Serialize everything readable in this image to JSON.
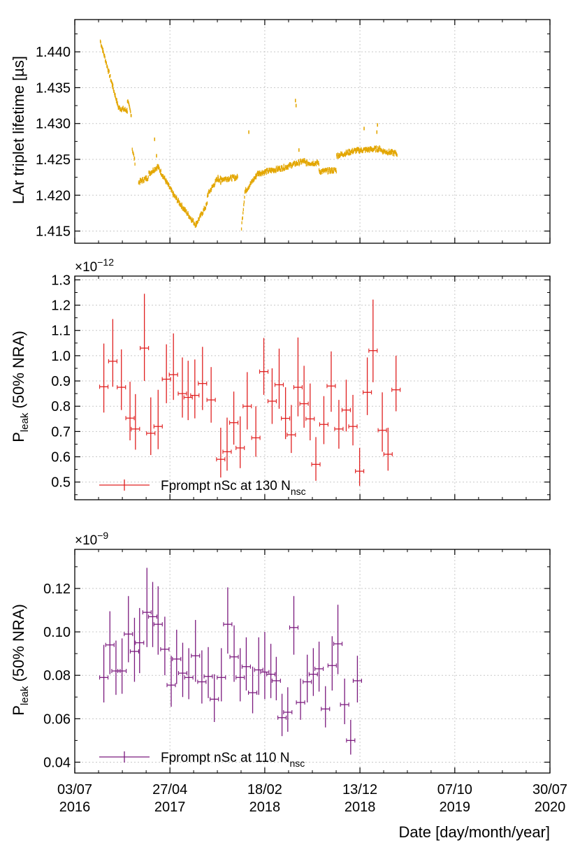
{
  "chart_data": [
    {
      "type": "scatter",
      "id": "lifetime",
      "ylabel": "LAr triplet lifetime [µs]",
      "ylim": [
        1.4133,
        1.4445
      ],
      "yticks": [
        1.415,
        1.42,
        1.425,
        1.43,
        1.435,
        1.44
      ],
      "ytick_labels": [
        "1.415",
        "1.420",
        "1.425",
        "1.430",
        "1.435",
        "1.440"
      ],
      "color": "#e3a600",
      "segments": [
        {
          "x0": 80,
          "x1": 137,
          "y0": 1.4415,
          "y1": 1.4322
        },
        {
          "x0": 137,
          "x1": 165,
          "y0": 1.4322,
          "y1": 1.4318
        },
        {
          "x0": 165,
          "x1": 177,
          "y0": 1.4332,
          "y1": 1.4312
        },
        {
          "x0": 180,
          "x1": 189,
          "y0": 1.4265,
          "y1": 1.4245
        },
        {
          "x0": 200,
          "x1": 230,
          "y0": 1.4218,
          "y1": 1.4225
        },
        {
          "x0": 232,
          "x1": 260,
          "y0": 1.423,
          "y1": 1.424
        },
        {
          "x0": 260,
          "x1": 310,
          "y0": 1.424,
          "y1": 1.42
        },
        {
          "x0": 310,
          "x1": 380,
          "y0": 1.42,
          "y1": 1.4158
        },
        {
          "x0": 380,
          "x1": 415,
          "y0": 1.416,
          "y1": 1.4188
        },
        {
          "x0": 415,
          "x1": 450,
          "y0": 1.42,
          "y1": 1.4225
        },
        {
          "x0": 450,
          "x1": 510,
          "y0": 1.4222,
          "y1": 1.4225
        },
        {
          "x0": 522,
          "x1": 533,
          "y0": 1.4155,
          "y1": 1.4205
        },
        {
          "x0": 533,
          "x1": 570,
          "y0": 1.4205,
          "y1": 1.4228
        },
        {
          "x0": 570,
          "x1": 650,
          "y0": 1.423,
          "y1": 1.4238
        },
        {
          "x0": 650,
          "x1": 720,
          "y0": 1.4238,
          "y1": 1.4248
        },
        {
          "x0": 720,
          "x1": 765,
          "y0": 1.4245,
          "y1": 1.4245
        },
        {
          "x0": 765,
          "x1": 820,
          "y0": 1.4233,
          "y1": 1.4235
        },
        {
          "x0": 820,
          "x1": 875,
          "y0": 1.4255,
          "y1": 1.4262
        },
        {
          "x0": 875,
          "x1": 960,
          "y0": 1.4262,
          "y1": 1.4265
        },
        {
          "x0": 960,
          "x1": 1010,
          "y0": 1.4262,
          "y1": 1.4258
        }
      ],
      "outliers": [
        {
          "x": 118,
          "y": 1.4355
        },
        {
          "x": 250,
          "y": 1.4278
        },
        {
          "x": 256,
          "y": 1.4255
        },
        {
          "x": 457,
          "y": 1.4217
        },
        {
          "x": 545,
          "y": 1.4288
        },
        {
          "x": 691,
          "y": 1.4332
        },
        {
          "x": 693,
          "y": 1.4325
        },
        {
          "x": 702,
          "y": 1.4263
        },
        {
          "x": 906,
          "y": 1.4293
        },
        {
          "x": 948,
          "y": 1.4298
        },
        {
          "x": 946,
          "y": 1.4288
        }
      ]
    },
    {
      "type": "scatter",
      "id": "pleak130",
      "ylabel": "P",
      "ylabel_sub": "leak",
      "ylabel_rest": "  (50% NRA)",
      "ylim": [
        0.43,
        1.315
      ],
      "yticks": [
        0.5,
        0.6,
        0.7,
        0.8,
        0.9,
        1.0,
        1.1,
        1.2,
        1.3
      ],
      "ytick_labels": [
        "0.5",
        "0.6",
        "0.7",
        "0.8",
        "0.9",
        "1.0",
        "1.1",
        "1.2",
        "1.3"
      ],
      "exponent_prefix": "×10",
      "exponent_power": "−12",
      "color": "#e02020",
      "legend_label": "Fprompt nSc at 130 N",
      "legend_sub": "nsc",
      "points": [
        {
          "x": 91,
          "y": 0.877,
          "lo": 0.775,
          "hi": 1.048
        },
        {
          "x": 119,
          "y": 0.978,
          "lo": 0.877,
          "hi": 1.145
        },
        {
          "x": 146,
          "y": 0.875,
          "lo": 0.785,
          "hi": 1.025
        },
        {
          "x": 173,
          "y": 0.753,
          "lo": 0.665,
          "hi": 0.897
        },
        {
          "x": 190,
          "y": 0.71,
          "lo": 0.628,
          "hi": 0.848
        },
        {
          "x": 218,
          "y": 1.03,
          "lo": 0.9,
          "hi": 1.245
        },
        {
          "x": 238,
          "y": 0.693,
          "lo": 0.607,
          "hi": 0.835
        },
        {
          "x": 261,
          "y": 0.72,
          "lo": 0.63,
          "hi": 0.865
        },
        {
          "x": 287,
          "y": 0.907,
          "lo": 0.812,
          "hi": 1.045
        },
        {
          "x": 309,
          "y": 0.925,
          "lo": 0.825,
          "hi": 1.088
        },
        {
          "x": 337,
          "y": 0.85,
          "lo": 0.755,
          "hi": 0.993
        },
        {
          "x": 355,
          "y": 0.835,
          "lo": 0.745,
          "hi": 0.98
        },
        {
          "x": 376,
          "y": 0.843,
          "lo": 0.752,
          "hi": 0.985
        },
        {
          "x": 400,
          "y": 0.89,
          "lo": 0.785,
          "hi": 1.035
        },
        {
          "x": 427,
          "y": 0.825,
          "lo": 0.735,
          "hi": 0.955
        },
        {
          "x": 457,
          "y": 0.59,
          "lo": 0.518,
          "hi": 0.715
        },
        {
          "x": 477,
          "y": 0.62,
          "lo": 0.545,
          "hi": 0.755
        },
        {
          "x": 498,
          "y": 0.735,
          "lo": 0.648,
          "hi": 0.858
        },
        {
          "x": 518,
          "y": 0.635,
          "lo": 0.555,
          "hi": 0.76
        },
        {
          "x": 540,
          "y": 0.8,
          "lo": 0.708,
          "hi": 0.935
        },
        {
          "x": 567,
          "y": 0.675,
          "lo": 0.6,
          "hi": 0.8
        },
        {
          "x": 592,
          "y": 0.937,
          "lo": 0.845,
          "hi": 1.07
        },
        {
          "x": 618,
          "y": 0.82,
          "lo": 0.73,
          "hi": 0.95
        },
        {
          "x": 640,
          "y": 0.885,
          "lo": 0.79,
          "hi": 1.028
        },
        {
          "x": 660,
          "y": 0.752,
          "lo": 0.67,
          "hi": 0.875
        },
        {
          "x": 678,
          "y": 0.687,
          "lo": 0.615,
          "hi": 0.805
        },
        {
          "x": 699,
          "y": 0.875,
          "lo": 0.76,
          "hi": 1.072
        },
        {
          "x": 718,
          "y": 0.81,
          "lo": 0.715,
          "hi": 0.96
        },
        {
          "x": 737,
          "y": 0.75,
          "lo": 0.665,
          "hi": 0.89
        },
        {
          "x": 755,
          "y": 0.57,
          "lo": 0.505,
          "hi": 0.678
        },
        {
          "x": 780,
          "y": 0.728,
          "lo": 0.65,
          "hi": 0.84
        },
        {
          "x": 803,
          "y": 0.88,
          "lo": 0.778,
          "hi": 1.017
        },
        {
          "x": 827,
          "y": 0.71,
          "lo": 0.632,
          "hi": 0.825
        },
        {
          "x": 850,
          "y": 0.785,
          "lo": 0.7,
          "hi": 0.905
        },
        {
          "x": 871,
          "y": 0.72,
          "lo": 0.645,
          "hi": 0.845
        },
        {
          "x": 892,
          "y": 0.543,
          "lo": 0.485,
          "hi": 0.635
        },
        {
          "x": 916,
          "y": 0.855,
          "lo": 0.765,
          "hi": 0.993
        },
        {
          "x": 934,
          "y": 1.02,
          "lo": 0.895,
          "hi": 1.222
        },
        {
          "x": 963,
          "y": 0.705,
          "lo": 0.62,
          "hi": 0.855
        },
        {
          "x": 981,
          "y": 0.61,
          "lo": 0.545,
          "hi": 0.715
        },
        {
          "x": 1006,
          "y": 0.865,
          "lo": 0.78,
          "hi": 1.0
        }
      ]
    },
    {
      "type": "scatter",
      "id": "pleak110",
      "ylabel": "P",
      "ylabel_sub": "leak",
      "ylabel_rest": "  (50% NRA)",
      "ylim": [
        0.035,
        0.138
      ],
      "yticks": [
        0.04,
        0.06,
        0.08,
        0.1,
        0.12
      ],
      "ytick_labels": [
        "0.04",
        "0.06",
        "0.08",
        "0.10",
        "0.12"
      ],
      "exponent_prefix": "×10",
      "exponent_power": "−9",
      "color": "#7b1a7e",
      "legend_label": "Fprompt nSc at 110 N",
      "legend_sub": "nsc",
      "points": [
        {
          "x": 91,
          "y": 0.079,
          "lo": 0.0675,
          "hi": 0.094
        },
        {
          "x": 110,
          "y": 0.094,
          "lo": 0.0805,
          "hi": 0.1095
        },
        {
          "x": 129,
          "y": 0.082,
          "lo": 0.071,
          "hi": 0.096
        },
        {
          "x": 148,
          "y": 0.082,
          "lo": 0.0715,
          "hi": 0.097
        },
        {
          "x": 168,
          "y": 0.099,
          "lo": 0.086,
          "hi": 0.1165
        },
        {
          "x": 187,
          "y": 0.091,
          "lo": 0.077,
          "hi": 0.1065
        },
        {
          "x": 203,
          "y": 0.095,
          "lo": 0.081,
          "hi": 0.111
        },
        {
          "x": 226,
          "y": 0.109,
          "lo": 0.093,
          "hi": 0.1295
        },
        {
          "x": 244,
          "y": 0.107,
          "lo": 0.093,
          "hi": 0.123
        },
        {
          "x": 261,
          "y": 0.1035,
          "lo": 0.0895,
          "hi": 0.121
        },
        {
          "x": 282,
          "y": 0.092,
          "lo": 0.08,
          "hi": 0.107
        },
        {
          "x": 302,
          "y": 0.0755,
          "lo": 0.0655,
          "hi": 0.089
        },
        {
          "x": 319,
          "y": 0.0875,
          "lo": 0.076,
          "hi": 0.101
        },
        {
          "x": 338,
          "y": 0.081,
          "lo": 0.07,
          "hi": 0.095
        },
        {
          "x": 357,
          "y": 0.079,
          "lo": 0.069,
          "hi": 0.0925
        },
        {
          "x": 378,
          "y": 0.089,
          "lo": 0.077,
          "hi": 0.1055
        },
        {
          "x": 398,
          "y": 0.077,
          "lo": 0.067,
          "hi": 0.0915
        },
        {
          "x": 418,
          "y": 0.0795,
          "lo": 0.0695,
          "hi": 0.093
        },
        {
          "x": 437,
          "y": 0.069,
          "lo": 0.0585,
          "hi": 0.0805
        },
        {
          "x": 459,
          "y": 0.079,
          "lo": 0.068,
          "hi": 0.0925
        },
        {
          "x": 479,
          "y": 0.1035,
          "lo": 0.09,
          "hi": 0.1205
        },
        {
          "x": 499,
          "y": 0.0885,
          "lo": 0.077,
          "hi": 0.103
        },
        {
          "x": 518,
          "y": 0.079,
          "lo": 0.068,
          "hi": 0.0925
        },
        {
          "x": 537,
          "y": 0.084,
          "lo": 0.073,
          "hi": 0.0975
        },
        {
          "x": 557,
          "y": 0.072,
          "lo": 0.0625,
          "hi": 0.084
        },
        {
          "x": 576,
          "y": 0.0825,
          "lo": 0.071,
          "hi": 0.0975
        },
        {
          "x": 595,
          "y": 0.0815,
          "lo": 0.069,
          "hi": 0.1
        },
        {
          "x": 614,
          "y": 0.0805,
          "lo": 0.0695,
          "hi": 0.0945
        },
        {
          "x": 631,
          "y": 0.0775,
          "lo": 0.0685,
          "hi": 0.0885
        },
        {
          "x": 649,
          "y": 0.0605,
          "lo": 0.052,
          "hi": 0.0715
        },
        {
          "x": 667,
          "y": 0.063,
          "lo": 0.054,
          "hi": 0.0745
        },
        {
          "x": 686,
          "y": 0.102,
          "lo": 0.0895,
          "hi": 0.1165
        },
        {
          "x": 707,
          "y": 0.0675,
          "lo": 0.0595,
          "hi": 0.0785
        },
        {
          "x": 728,
          "y": 0.077,
          "lo": 0.0675,
          "hi": 0.0895
        },
        {
          "x": 747,
          "y": 0.0805,
          "lo": 0.0705,
          "hi": 0.0925
        },
        {
          "x": 765,
          "y": 0.083,
          "lo": 0.0725,
          "hi": 0.0955
        },
        {
          "x": 785,
          "y": 0.0645,
          "lo": 0.056,
          "hi": 0.075
        },
        {
          "x": 806,
          "y": 0.0845,
          "lo": 0.073,
          "hi": 0.098
        },
        {
          "x": 824,
          "y": 0.0945,
          "lo": 0.0805,
          "hi": 0.1125
        },
        {
          "x": 845,
          "y": 0.0665,
          "lo": 0.0575,
          "hi": 0.0785
        },
        {
          "x": 864,
          "y": 0.05,
          "lo": 0.0435,
          "hi": 0.0595
        },
        {
          "x": 885,
          "y": 0.0775,
          "lo": 0.0675,
          "hi": 0.089
        }
      ]
    }
  ],
  "x_axis": {
    "unit": "days since 03/07/2016",
    "xlim": [
      0,
      1488
    ],
    "ticks": [
      0,
      298,
      595,
      893,
      1190,
      1488
    ],
    "tick_dates": [
      "03/07",
      "27/04",
      "18/02",
      "13/12",
      "07/10",
      "30/07"
    ],
    "tick_years": [
      "2016",
      "2017",
      "2018",
      "2018",
      "2019",
      "2020"
    ],
    "label": "Date [day/month/year]"
  }
}
